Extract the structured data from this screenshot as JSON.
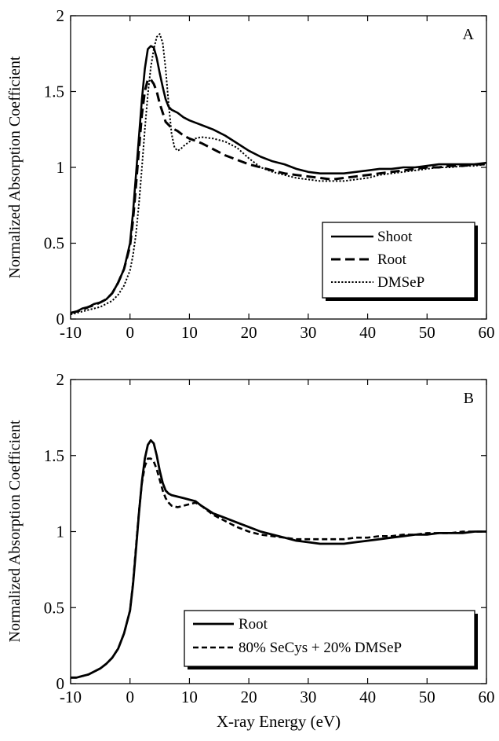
{
  "chart_data": [
    {
      "type": "line",
      "panel_label": "A",
      "xlabel": "",
      "ylabel": "Normalized Absorption Coefficient",
      "xlim": [
        -10,
        60
      ],
      "ylim": [
        0,
        2
      ],
      "xticks": [
        -10,
        0,
        10,
        20,
        30,
        40,
        50,
        60
      ],
      "yticks": [
        0,
        0.5,
        1,
        1.5,
        2
      ],
      "ytick_labels": [
        "0",
        "0.5",
        "1",
        "1.5",
        "2"
      ],
      "grid": false,
      "legend_position": "lower-right",
      "series": [
        {
          "name": "Shoot",
          "style": "solid",
          "color": "#000000",
          "x": [
            -10,
            -9,
            -8,
            -7,
            -6,
            -5,
            -4,
            -3,
            -2,
            -1,
            0,
            0.5,
            1,
            1.5,
            2,
            2.5,
            3,
            3.5,
            4,
            4.5,
            5,
            5.5,
            6,
            6.5,
            7,
            8,
            9,
            10,
            12,
            14,
            16,
            18,
            20,
            22,
            24,
            26,
            28,
            30,
            32,
            34,
            36,
            38,
            40,
            42,
            44,
            46,
            48,
            50,
            52,
            54,
            56,
            58,
            60
          ],
          "y": [
            0.04,
            0.05,
            0.07,
            0.08,
            0.1,
            0.11,
            0.13,
            0.17,
            0.24,
            0.33,
            0.5,
            0.7,
            0.95,
            1.2,
            1.45,
            1.65,
            1.78,
            1.8,
            1.79,
            1.72,
            1.62,
            1.53,
            1.45,
            1.4,
            1.38,
            1.36,
            1.33,
            1.31,
            1.28,
            1.25,
            1.21,
            1.16,
            1.11,
            1.07,
            1.04,
            1.02,
            0.99,
            0.97,
            0.96,
            0.96,
            0.96,
            0.97,
            0.98,
            0.99,
            0.99,
            1.0,
            1.0,
            1.01,
            1.02,
            1.02,
            1.02,
            1.02,
            1.03
          ]
        },
        {
          "name": "Root",
          "style": "dashed",
          "color": "#000000",
          "x": [
            -10,
            -9,
            -8,
            -7,
            -6,
            -5,
            -4,
            -3,
            -2,
            -1,
            0,
            0.5,
            1,
            1.5,
            2,
            2.5,
            3,
            3.5,
            4,
            4.5,
            5,
            5.5,
            6,
            7,
            8,
            9,
            10,
            12,
            14,
            16,
            18,
            20,
            22,
            24,
            26,
            28,
            30,
            32,
            34,
            36,
            38,
            40,
            42,
            44,
            46,
            48,
            50,
            52,
            54,
            56,
            58,
            60
          ],
          "y": [
            0.04,
            0.05,
            0.06,
            0.08,
            0.09,
            0.11,
            0.13,
            0.17,
            0.24,
            0.33,
            0.48,
            0.65,
            0.88,
            1.12,
            1.35,
            1.5,
            1.58,
            1.58,
            1.55,
            1.5,
            1.42,
            1.36,
            1.3,
            1.26,
            1.24,
            1.21,
            1.19,
            1.16,
            1.12,
            1.08,
            1.05,
            1.02,
            1.0,
            0.98,
            0.96,
            0.95,
            0.94,
            0.93,
            0.92,
            0.93,
            0.94,
            0.95,
            0.96,
            0.97,
            0.98,
            0.99,
            1.0,
            1.0,
            1.01,
            1.01,
            1.02,
            1.02
          ]
        },
        {
          "name": "DMSeP",
          "style": "dotted",
          "color": "#000000",
          "x": [
            -10,
            -9,
            -8,
            -7,
            -6,
            -5,
            -4,
            -3,
            -2,
            -1,
            0,
            0.5,
            1,
            1.5,
            2,
            2.5,
            3,
            3.5,
            4,
            4.5,
            5,
            5.5,
            6,
            6.5,
            7,
            7.5,
            8,
            8.5,
            9,
            10,
            11,
            12,
            14,
            16,
            18,
            20,
            22,
            24,
            26,
            28,
            30,
            32,
            34,
            36,
            38,
            40,
            42,
            44,
            46,
            48,
            50,
            52,
            54,
            56,
            58,
            60
          ],
          "y": [
            0.03,
            0.04,
            0.05,
            0.06,
            0.07,
            0.08,
            0.1,
            0.12,
            0.16,
            0.22,
            0.32,
            0.42,
            0.56,
            0.76,
            1.0,
            1.25,
            1.48,
            1.66,
            1.78,
            1.86,
            1.88,
            1.82,
            1.65,
            1.42,
            1.22,
            1.13,
            1.11,
            1.12,
            1.14,
            1.17,
            1.19,
            1.2,
            1.19,
            1.17,
            1.13,
            1.06,
            1.0,
            0.97,
            0.95,
            0.93,
            0.92,
            0.91,
            0.91,
            0.91,
            0.92,
            0.93,
            0.95,
            0.96,
            0.97,
            0.98,
            0.99,
            1.0,
            1.0,
            1.01,
            1.01,
            1.02
          ]
        }
      ]
    },
    {
      "type": "line",
      "panel_label": "B",
      "xlabel": "X-ray Energy (eV)",
      "ylabel": "Normalized Absorption Coefficient",
      "xlim": [
        -10,
        60
      ],
      "ylim": [
        0,
        2
      ],
      "xticks": [
        -10,
        0,
        10,
        20,
        30,
        40,
        50,
        60
      ],
      "yticks": [
        0,
        0.5,
        1,
        1.5,
        2
      ],
      "ytick_labels": [
        "0",
        "0.5",
        "1",
        "1.5",
        "2"
      ],
      "grid": false,
      "legend_position": "lower-right",
      "series": [
        {
          "name": "Root",
          "style": "solid",
          "color": "#000000",
          "x": [
            -10,
            -9,
            -8,
            -7,
            -6,
            -5,
            -4,
            -3,
            -2,
            -1,
            0,
            0.5,
            1,
            1.5,
            2,
            2.5,
            3,
            3.5,
            4,
            4.5,
            5,
            5.5,
            6,
            6.5,
            7,
            8,
            9,
            10,
            11,
            12,
            14,
            16,
            18,
            20,
            22,
            24,
            26,
            28,
            30,
            32,
            34,
            36,
            38,
            40,
            42,
            44,
            46,
            48,
            50,
            52,
            54,
            56,
            58,
            60
          ],
          "y": [
            0.04,
            0.04,
            0.05,
            0.06,
            0.08,
            0.1,
            0.13,
            0.17,
            0.23,
            0.33,
            0.48,
            0.65,
            0.88,
            1.12,
            1.33,
            1.48,
            1.57,
            1.6,
            1.58,
            1.5,
            1.4,
            1.32,
            1.27,
            1.25,
            1.24,
            1.23,
            1.22,
            1.21,
            1.2,
            1.17,
            1.12,
            1.09,
            1.06,
            1.03,
            1.0,
            0.98,
            0.96,
            0.94,
            0.93,
            0.92,
            0.92,
            0.92,
            0.93,
            0.94,
            0.95,
            0.96,
            0.97,
            0.98,
            0.98,
            0.99,
            0.99,
            0.99,
            1.0,
            1.0
          ]
        },
        {
          "name": "80% SeCys + 20% DMSeP",
          "style": "dashed",
          "color": "#000000",
          "x": [
            -10,
            -9,
            -8,
            -7,
            -6,
            -5,
            -4,
            -3,
            -2,
            -1,
            0,
            0.5,
            1,
            1.5,
            2,
            2.5,
            3,
            3.5,
            4,
            4.5,
            5,
            5.5,
            6,
            6.5,
            7,
            8,
            9,
            10,
            11,
            12,
            14,
            16,
            18,
            20,
            22,
            24,
            26,
            28,
            30,
            32,
            34,
            36,
            38,
            40,
            42,
            44,
            46,
            48,
            50,
            52,
            54,
            56,
            58,
            60
          ],
          "y": [
            0.04,
            0.04,
            0.05,
            0.06,
            0.08,
            0.1,
            0.13,
            0.17,
            0.23,
            0.33,
            0.48,
            0.66,
            0.9,
            1.13,
            1.32,
            1.43,
            1.48,
            1.48,
            1.46,
            1.41,
            1.34,
            1.27,
            1.22,
            1.19,
            1.17,
            1.16,
            1.17,
            1.18,
            1.19,
            1.17,
            1.11,
            1.07,
            1.03,
            1.0,
            0.98,
            0.97,
            0.96,
            0.95,
            0.95,
            0.95,
            0.95,
            0.95,
            0.96,
            0.96,
            0.97,
            0.97,
            0.98,
            0.98,
            0.99,
            0.99,
            0.99,
            1.0,
            1.0,
            1.0
          ]
        }
      ]
    }
  ]
}
